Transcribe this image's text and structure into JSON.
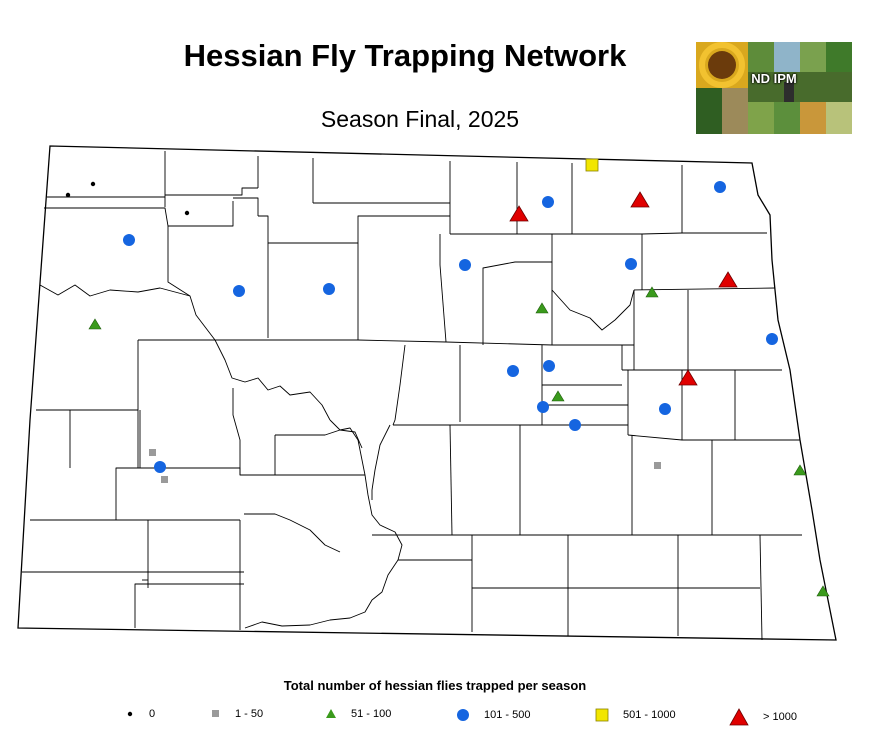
{
  "title": "Hessian Fly Trapping Network",
  "subtitle": "Season Final, 2025",
  "logo": {
    "text": "ND IPM"
  },
  "legend": {
    "title": "Total number of hessian flies trapped per season",
    "items": [
      {
        "label": "0",
        "symbol": "dot",
        "color": "#000000"
      },
      {
        "label": "1 - 50",
        "symbol": "square",
        "color": "#9a9a9a"
      },
      {
        "label": "51 - 100",
        "symbol": "triangle",
        "color": "#3a9a1c"
      },
      {
        "label": "101 - 500",
        "symbol": "circle",
        "color": "#1565e0"
      },
      {
        "label": "501 - 1000",
        "symbol": "square",
        "color": "#f2e600"
      },
      {
        "label": "> 1000",
        "symbol": "triangle",
        "color": "#e00000"
      }
    ]
  }
}
